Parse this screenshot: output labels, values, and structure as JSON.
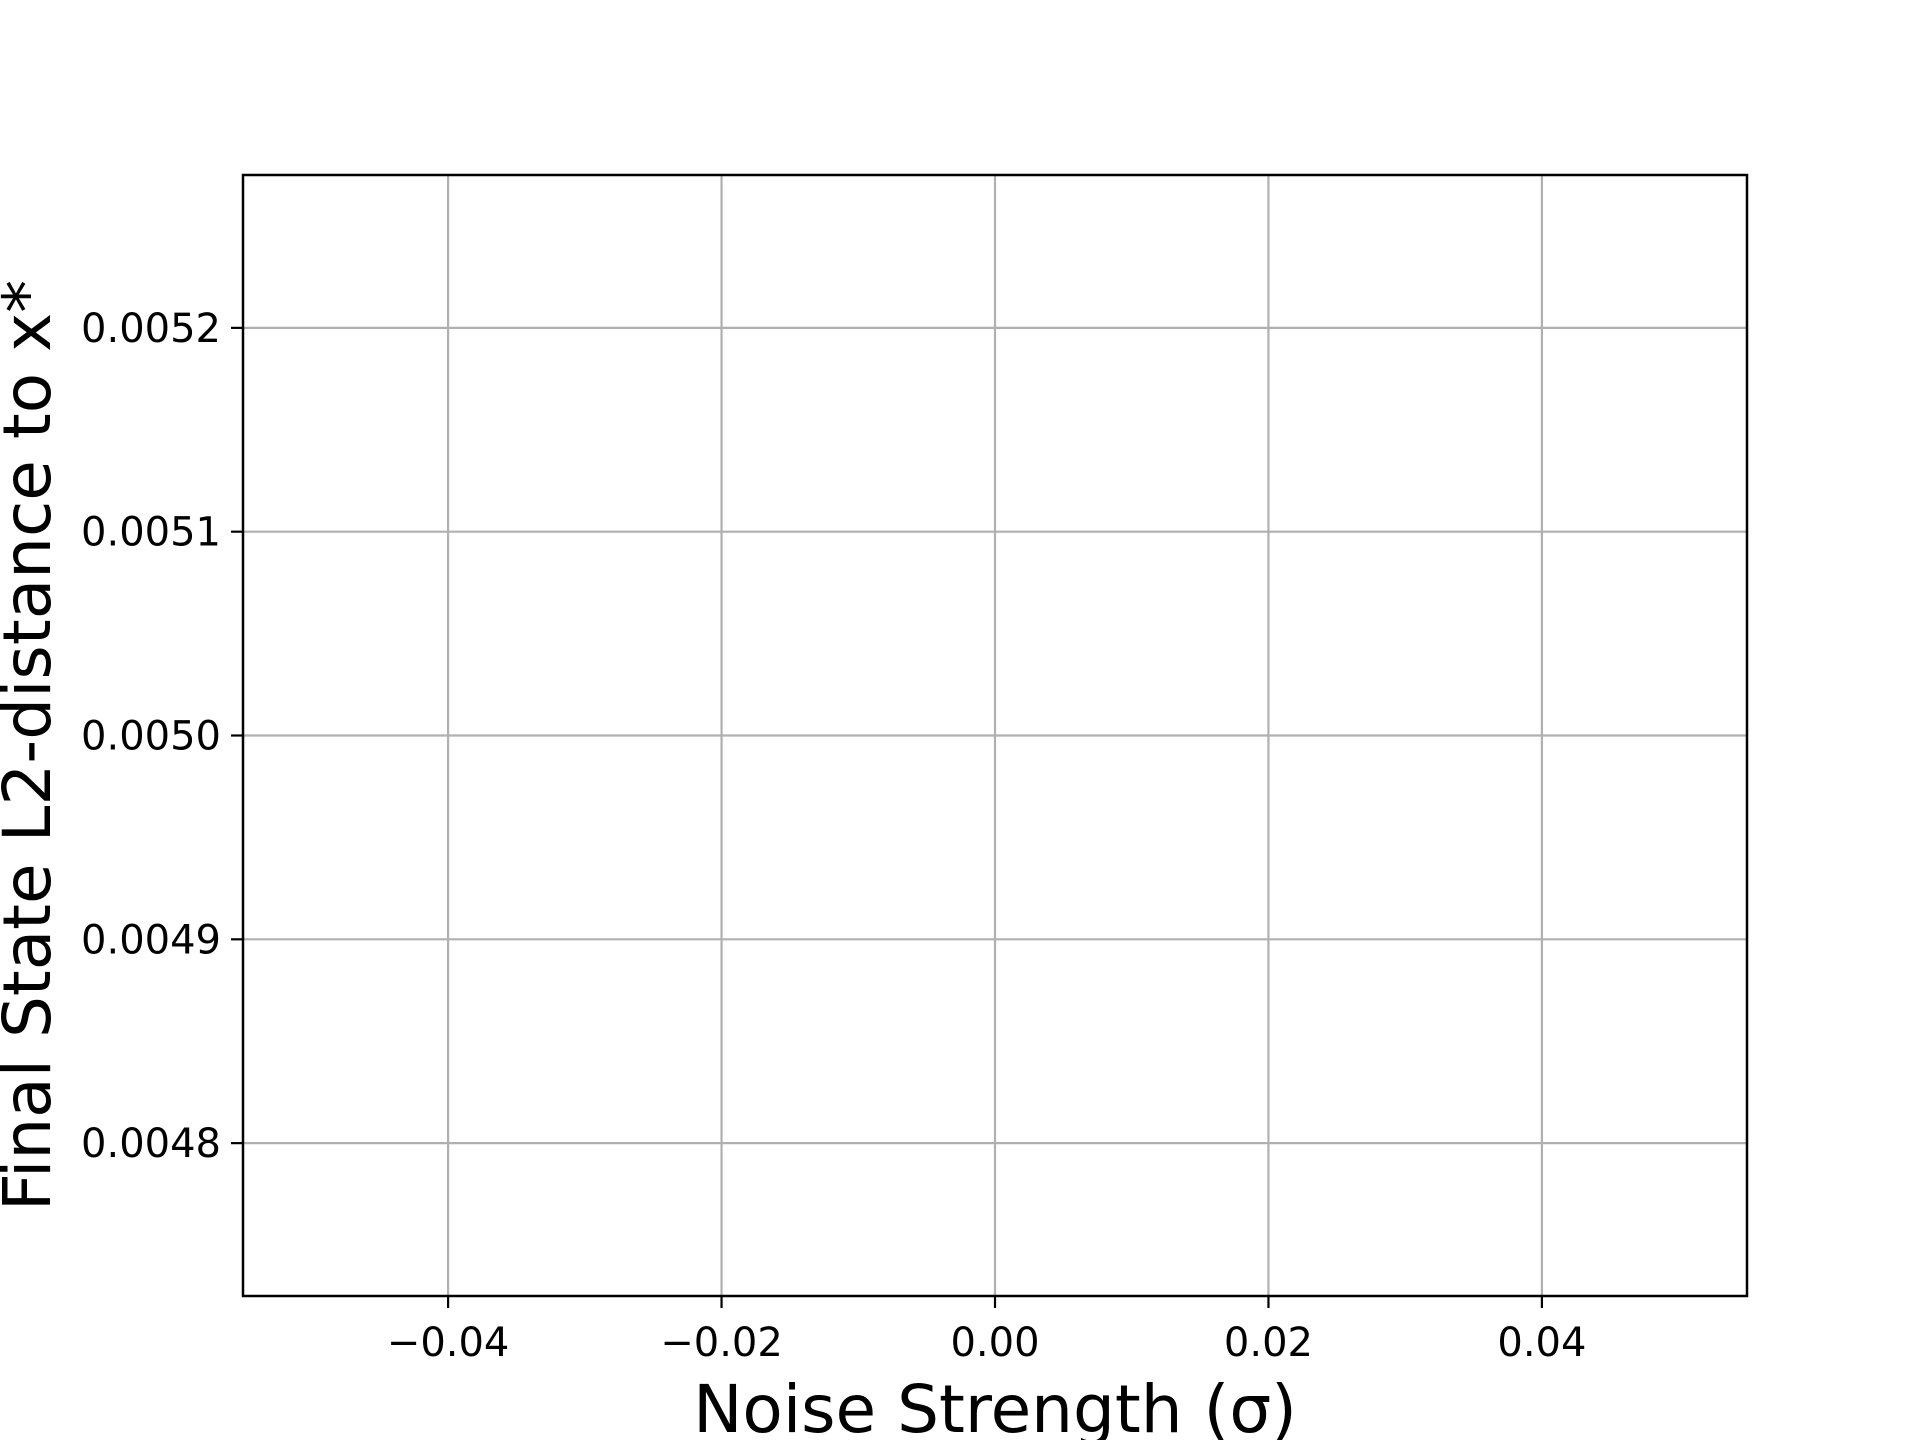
{
  "chart_data": {
    "type": "line",
    "title": "",
    "xlabel": "Noise Strength (σ)",
    "ylabel": "Final State L2-distance to x*",
    "x_ticks": [
      -0.04,
      -0.02,
      0.0,
      0.02,
      0.04
    ],
    "x_tick_labels": [
      "−0.04",
      "−0.02",
      "0.00",
      "0.02",
      "0.04"
    ],
    "y_ticks": [
      0.0048,
      0.0049,
      0.005,
      0.0051,
      0.0052
    ],
    "y_tick_labels": [
      "0.0048",
      "0.0049",
      "0.0050",
      "0.0051",
      "0.0052"
    ],
    "xlim": [
      -0.055,
      0.055
    ],
    "ylim": [
      0.004725,
      0.005275
    ],
    "grid": true,
    "series": [],
    "colors": {
      "grid": "#b0b0b0",
      "axes": "#000000",
      "background": "#ffffff"
    }
  }
}
